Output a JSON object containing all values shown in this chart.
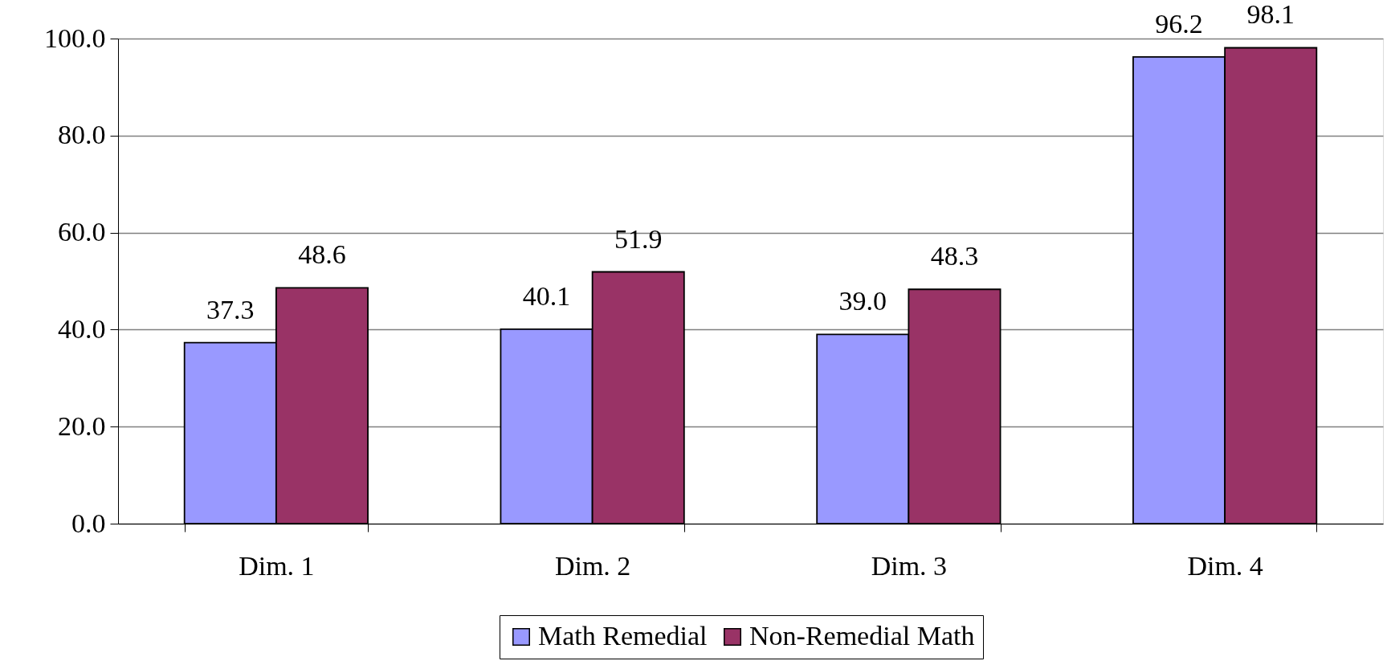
{
  "chart_data": {
    "type": "bar",
    "categories": [
      "Dim. 1",
      "Dim. 2",
      "Dim. 3",
      "Dim. 4"
    ],
    "series": [
      {
        "name": "Math Remedial",
        "color": "#9999ff",
        "values": [
          37.3,
          40.1,
          39.0,
          96.2
        ],
        "value_labels": [
          "37.3",
          "40.1",
          "39.0",
          "96.2"
        ]
      },
      {
        "name": "Non-Remedial Math",
        "color": "#993366",
        "values": [
          48.6,
          51.9,
          48.3,
          98.1
        ],
        "value_labels": [
          "48.6",
          "51.9",
          "48.3",
          "98.1"
        ]
      }
    ],
    "ylim": [
      0,
      100
    ],
    "yticks": [
      {
        "value": 0,
        "label": "0.0"
      },
      {
        "value": 20,
        "label": "20.0"
      },
      {
        "value": 40,
        "label": "40.0"
      },
      {
        "value": 60,
        "label": "60.0"
      },
      {
        "value": 80,
        "label": "80.0"
      },
      {
        "value": 100,
        "label": "100.0"
      }
    ],
    "grid": "y",
    "legend": "bottom"
  }
}
